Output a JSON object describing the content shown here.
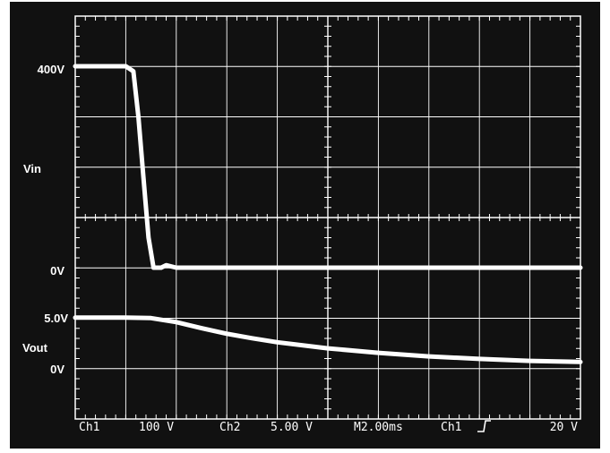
{
  "chart_data": {
    "type": "line",
    "x_unit": "ms",
    "xlim": [
      0,
      20
    ],
    "grid": true,
    "traces": [
      {
        "channel": "Ch1",
        "name": "Vin",
        "zero_label": "0V",
        "level_label": "400V",
        "x": [
          0,
          2.0,
          2.3,
          2.5,
          2.7,
          2.9,
          3.1,
          3.4,
          3.6,
          4.0,
          6.0,
          10.0,
          14.0,
          17.0,
          20.0
        ],
        "y": [
          400,
          400,
          390,
          300,
          180,
          60,
          0,
          0,
          5,
          0,
          0,
          0,
          0,
          0,
          0
        ]
      },
      {
        "channel": "Ch2",
        "name": "Vout",
        "zero_label": "0V",
        "level_label": "5.0V",
        "x": [
          0,
          2.0,
          3.0,
          4.0,
          5.0,
          6.0,
          7.0,
          8.0,
          10.0,
          12.0,
          14.0,
          16.0,
          18.0,
          20.0
        ],
        "y": [
          5.0,
          5.0,
          4.95,
          4.55,
          3.95,
          3.4,
          2.95,
          2.55,
          1.95,
          1.5,
          1.15,
          0.9,
          0.7,
          0.6
        ]
      }
    ]
  },
  "footer": {
    "ch1_label": "Ch1",
    "ch1_scale": "100 V",
    "ch2_label": "Ch2",
    "ch2_scale": "5.00 V",
    "timebase": "M2.00ms",
    "trigger_source": "Ch1",
    "trigger_level": "20 V"
  },
  "colors": {
    "background": "#111111",
    "trace": "#ffffff",
    "grid": "#ffffff",
    "page": "#ffffff"
  }
}
